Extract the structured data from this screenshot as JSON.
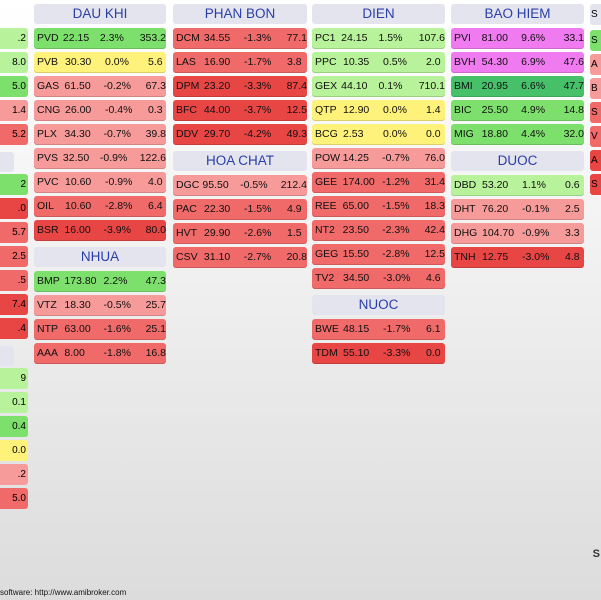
{
  "colors": {
    "red_dark": "#e84545",
    "red": "#f06a6a",
    "red_light": "#f79a9a",
    "yellow": "#fff27a",
    "green_light": "#b8f29a",
    "green": "#7ee06c",
    "green_dark": "#47c06a",
    "magenta": "#f07af0",
    "header_bg": "#e4e4ee",
    "header_text": "#2a3ea8"
  },
  "sectors": [
    {
      "name": "DAU KHI",
      "rows": [
        {
          "sym": "PVD",
          "price": "22.15",
          "chg": "2.3%",
          "vol": "353.2",
          "color": "green"
        },
        {
          "sym": "PVB",
          "price": "30.30",
          "chg": "0.0%",
          "vol": "5.6",
          "color": "yellow"
        },
        {
          "sym": "GAS",
          "price": "61.50",
          "chg": "-0.2%",
          "vol": "67.3",
          "color": "red_light"
        },
        {
          "sym": "CNG",
          "price": "26.00",
          "chg": "-0.4%",
          "vol": "0.3",
          "color": "red_light"
        },
        {
          "sym": "PLX",
          "price": "34.30",
          "chg": "-0.7%",
          "vol": "39.8",
          "color": "red_light"
        },
        {
          "sym": "PVS",
          "price": "32.50",
          "chg": "-0.9%",
          "vol": "122.6",
          "color": "red_light"
        },
        {
          "sym": "PVC",
          "price": "10.60",
          "chg": "-0.9%",
          "vol": "4.0",
          "color": "red_light"
        },
        {
          "sym": "OIL",
          "price": "10.60",
          "chg": "-2.8%",
          "vol": "6.4",
          "color": "red"
        },
        {
          "sym": "BSR",
          "price": "16.00",
          "chg": "-3.9%",
          "vol": "80.0",
          "color": "red_dark"
        }
      ]
    },
    {
      "name": "NHUA",
      "rows": [
        {
          "sym": "BMP",
          "price": "173.80",
          "chg": "2.2%",
          "vol": "47.3",
          "color": "green"
        },
        {
          "sym": "VTZ",
          "price": "18.30",
          "chg": "-0.5%",
          "vol": "25.7",
          "color": "red_light"
        },
        {
          "sym": "NTP",
          "price": "63.00",
          "chg": "-1.6%",
          "vol": "25.1",
          "color": "red"
        },
        {
          "sym": "AAA",
          "price": "8.00",
          "chg": "-1.8%",
          "vol": "16.8",
          "color": "red"
        }
      ]
    },
    {
      "name": "PHAN BON",
      "rows": [
        {
          "sym": "DCM",
          "price": "34.55",
          "chg": "-1.3%",
          "vol": "77.1",
          "color": "red"
        },
        {
          "sym": "LAS",
          "price": "16.90",
          "chg": "-1.7%",
          "vol": "3.8",
          "color": "red"
        },
        {
          "sym": "DPM",
          "price": "23.20",
          "chg": "-3.3%",
          "vol": "87.4",
          "color": "red_dark"
        },
        {
          "sym": "BFC",
          "price": "44.00",
          "chg": "-3.7%",
          "vol": "12.5",
          "color": "red_dark"
        },
        {
          "sym": "DDV",
          "price": "29.70",
          "chg": "-4.2%",
          "vol": "49.3",
          "color": "red_dark"
        }
      ]
    },
    {
      "name": "HOA CHAT",
      "rows": [
        {
          "sym": "DGC",
          "price": "95.50",
          "chg": "-0.5%",
          "vol": "212.4",
          "color": "red_light"
        },
        {
          "sym": "PAC",
          "price": "22.30",
          "chg": "-1.5%",
          "vol": "4.9",
          "color": "red"
        },
        {
          "sym": "HVT",
          "price": "29.90",
          "chg": "-2.6%",
          "vol": "1.5",
          "color": "red"
        },
        {
          "sym": "CSV",
          "price": "31.10",
          "chg": "-2.7%",
          "vol": "20.8",
          "color": "red"
        }
      ]
    },
    {
      "name": "DIEN",
      "rows": [
        {
          "sym": "PC1",
          "price": "24.15",
          "chg": "1.5%",
          "vol": "107.6",
          "color": "green_light"
        },
        {
          "sym": "PPC",
          "price": "10.35",
          "chg": "0.5%",
          "vol": "2.0",
          "color": "green_light"
        },
        {
          "sym": "GEX",
          "price": "44.10",
          "chg": "0.1%",
          "vol": "710.1",
          "color": "green_light"
        },
        {
          "sym": "QTP",
          "price": "12.90",
          "chg": "0.0%",
          "vol": "1.4",
          "color": "yellow"
        },
        {
          "sym": "BCG",
          "price": "2.53",
          "chg": "0.0%",
          "vol": "0.0",
          "color": "yellow"
        },
        {
          "sym": "POW",
          "price": "14.25",
          "chg": "-0.7%",
          "vol": "76.0",
          "color": "red_light"
        },
        {
          "sym": "GEE",
          "price": "174.00",
          "chg": "-1.2%",
          "vol": "31.4",
          "color": "red"
        },
        {
          "sym": "REE",
          "price": "65.00",
          "chg": "-1.5%",
          "vol": "18.3",
          "color": "red"
        },
        {
          "sym": "NT2",
          "price": "23.50",
          "chg": "-2.3%",
          "vol": "42.4",
          "color": "red"
        },
        {
          "sym": "GEG",
          "price": "15.50",
          "chg": "-2.8%",
          "vol": "12.5",
          "color": "red"
        },
        {
          "sym": "TV2",
          "price": "34.50",
          "chg": "-3.0%",
          "vol": "4.6",
          "color": "red"
        }
      ]
    },
    {
      "name": "NUOC",
      "rows": [
        {
          "sym": "BWE",
          "price": "48.15",
          "chg": "-1.7%",
          "vol": "6.1",
          "color": "red"
        },
        {
          "sym": "TDM",
          "price": "55.10",
          "chg": "-3.3%",
          "vol": "0.0",
          "color": "red_dark"
        }
      ]
    },
    {
      "name": "BAO HIEM",
      "rows": [
        {
          "sym": "PVI",
          "price": "81.00",
          "chg": "9.6%",
          "vol": "33.1",
          "color": "magenta"
        },
        {
          "sym": "BVH",
          "price": "54.30",
          "chg": "6.9%",
          "vol": "47.6",
          "color": "magenta"
        },
        {
          "sym": "BMI",
          "price": "20.95",
          "chg": "6.6%",
          "vol": "47.7",
          "color": "green_dark"
        },
        {
          "sym": "BIC",
          "price": "25.50",
          "chg": "4.9%",
          "vol": "14.8",
          "color": "green"
        },
        {
          "sym": "MIG",
          "price": "18.80",
          "chg": "4.4%",
          "vol": "32.0",
          "color": "green"
        }
      ]
    },
    {
      "name": "DUOC",
      "rows": [
        {
          "sym": "DBD",
          "price": "53.20",
          "chg": "1.1%",
          "vol": "0.6",
          "color": "green_light"
        },
        {
          "sym": "DHT",
          "price": "76.20",
          "chg": "-0.1%",
          "vol": "2.5",
          "color": "red_light"
        },
        {
          "sym": "DHG",
          "price": "104.70",
          "chg": "-0.9%",
          "vol": "3.3",
          "color": "red_light"
        },
        {
          "sym": "TNH",
          "price": "12.75",
          "chg": "-3.0%",
          "vol": "4.8",
          "color": "red_dark"
        }
      ]
    }
  ],
  "left_edge_rows": [
    {
      "text": ".2",
      "color": "green_light"
    },
    {
      "text": "8.0",
      "color": "green_light"
    },
    {
      "text": "5.0",
      "color": "green"
    },
    {
      "text": "1.4",
      "color": "red_light"
    },
    {
      "text": "5.2",
      "color": "red"
    },
    {
      "text": "",
      "color": "none"
    },
    {
      "text": "2",
      "color": "green"
    },
    {
      "text": ".0",
      "color": "red_dark"
    },
    {
      "text": "5.7",
      "color": "red"
    },
    {
      "text": "2.5",
      "color": "red"
    },
    {
      "text": ".5",
      "color": "red"
    },
    {
      "text": "7.4",
      "color": "red_dark"
    },
    {
      "text": ".4",
      "color": "red_dark"
    },
    {
      "text": "",
      "color": "none"
    },
    {
      "text": "9",
      "color": "green_light"
    },
    {
      "text": "0.1",
      "color": "green_light"
    },
    {
      "text": "0.4",
      "color": "green"
    },
    {
      "text": "0.0",
      "color": "yellow"
    },
    {
      "text": ".2",
      "color": "red_light"
    },
    {
      "text": "5.0",
      "color": "red"
    }
  ],
  "right_edge_rows": [
    {
      "text": "S",
      "color": "header_bg"
    },
    {
      "text": "S",
      "color": "green"
    },
    {
      "text": "A",
      "color": "red_light"
    },
    {
      "text": "B",
      "color": "red_light"
    },
    {
      "text": "S",
      "color": "red"
    },
    {
      "text": "V",
      "color": "red"
    },
    {
      "text": "A",
      "color": "red_dark"
    },
    {
      "text": "S",
      "color": "red_dark"
    }
  ],
  "footer_text": "software: http://www.amibroker.com",
  "side_label": "S"
}
